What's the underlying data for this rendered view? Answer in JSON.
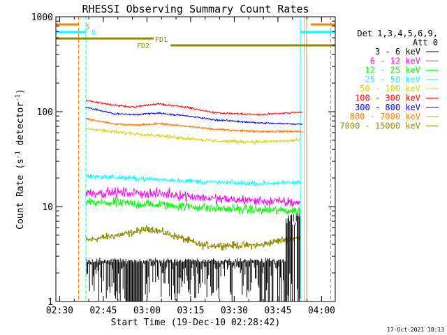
{
  "chart_data": {
    "type": "line",
    "title": "RHESSI Observing Summary Count Rates",
    "xlabel": "Start Time (19-Dec-10 02:28:42)",
    "ylabel": "Count Rate (s^-1 detector^-1)",
    "ylabel_parts": [
      "Count Rate (s",
      "-1",
      " detector",
      "-1",
      ")"
    ],
    "yscale": "log",
    "ylim": [
      1,
      1000
    ],
    "xlim_minutes": [
      0,
      96
    ],
    "x_tick_labels": [
      "02:30",
      "02:45",
      "03:00",
      "03:15",
      "03:30",
      "03:45",
      "04:00"
    ],
    "x_tick_minutes": [
      1.3,
      16.3,
      31.3,
      46.3,
      61.3,
      76.3,
      91.3
    ],
    "y_tick_labels": [
      "1",
      "10",
      "100",
      "1000"
    ],
    "y_tick_values": [
      1,
      10,
      100,
      1000
    ],
    "legend": {
      "header": [
        "Det 1,3,4,5,6,9,",
        "Att 0"
      ],
      "entries": [
        {
          "label": "3 - 6 keV",
          "color": "#000000"
        },
        {
          "label": "6 - 12 keV",
          "color": "#ff00ff"
        },
        {
          "label": "12 - 25 keV",
          "color": "#00ff00"
        },
        {
          "label": "25 - 50 keV",
          "color": "#00ffff"
        },
        {
          "label": "50 - 100 keV",
          "color": "#d4d400"
        },
        {
          "label": "100 - 300 keV",
          "color": "#ff0000"
        },
        {
          "label": "300 - 800 keV",
          "color": "#0000ff"
        },
        {
          "label": "800 - 7000 keV",
          "color": "#ff8000"
        },
        {
          "label": "7000 - 15000 keV",
          "color": "#8c8c00"
        }
      ]
    },
    "series": [
      {
        "name": "3 - 6 keV",
        "color": "#000000",
        "kind": "dropout",
        "t_start": 10.6,
        "t_end": 84,
        "base": 2.7
      },
      {
        "name": "6 - 12 keV",
        "color": "#ff00ff",
        "t_start": 10.3,
        "t_end": 84,
        "level": [
          [
            10.3,
            14
          ],
          [
            25,
            14
          ],
          [
            40,
            13.5
          ],
          [
            55,
            12
          ],
          [
            70,
            11.5
          ],
          [
            84,
            11
          ]
        ],
        "noise": 0.1
      },
      {
        "name": "12 - 25 keV",
        "color": "#00ff00",
        "t_start": 10.3,
        "t_end": 84,
        "level": [
          [
            10.3,
            11
          ],
          [
            25,
            10.8
          ],
          [
            40,
            10.3
          ],
          [
            55,
            9.6
          ],
          [
            70,
            9.2
          ],
          [
            84,
            9
          ]
        ],
        "noise": 0.1
      },
      {
        "name": "25 - 50 keV",
        "color": "#00ffff",
        "t_start": 10.3,
        "t_end": 84,
        "level": [
          [
            10.3,
            21
          ],
          [
            25,
            20
          ],
          [
            40,
            19
          ],
          [
            55,
            18
          ],
          [
            70,
            17.5
          ],
          [
            84,
            18
          ]
        ],
        "noise": 0.05
      },
      {
        "name": "50 - 100 keV",
        "color": "#d4d400",
        "t_start": 10.3,
        "t_end": 84,
        "level": [
          [
            10.3,
            67
          ],
          [
            20,
            61
          ],
          [
            30,
            58
          ],
          [
            40,
            54
          ],
          [
            55,
            49
          ],
          [
            70,
            48
          ],
          [
            84,
            50
          ]
        ],
        "noise": 0.035
      },
      {
        "name": "100 - 300 keV",
        "color": "#ff0000",
        "t_start": 10.3,
        "t_end": 85,
        "level": [
          [
            10.3,
            132
          ],
          [
            20,
            117
          ],
          [
            27,
            112
          ],
          [
            35,
            121
          ],
          [
            45,
            111
          ],
          [
            55,
            97
          ],
          [
            70,
            93
          ],
          [
            84,
            99
          ]
        ],
        "noise": 0.018
      },
      {
        "name": "300 - 800 keV",
        "color": "#0000ff",
        "t_start": 10.3,
        "t_end": 85,
        "level": [
          [
            10.3,
            111
          ],
          [
            20,
            95
          ],
          [
            27,
            93
          ],
          [
            35,
            97
          ],
          [
            45,
            90
          ],
          [
            55,
            82
          ],
          [
            70,
            76
          ],
          [
            84,
            74
          ]
        ],
        "noise": 0.018
      },
      {
        "name": "800 - 7000 keV",
        "color": "#ff8000",
        "kind": "step",
        "t_start": 10.3,
        "t_end": 85,
        "level": [
          [
            10.3,
            84
          ],
          [
            20,
            74
          ],
          [
            27,
            72
          ],
          [
            35,
            75
          ],
          [
            45,
            70
          ],
          [
            55,
            65
          ],
          [
            70,
            62
          ],
          [
            84,
            62
          ]
        ],
        "noise": 0.02
      },
      {
        "name": "7000 - 15000 keV",
        "color": "#8c8c00",
        "kind": "step",
        "t_start": 10.3,
        "t_end": 84,
        "level": [
          [
            10.3,
            4.4
          ],
          [
            25,
            5.2
          ],
          [
            32,
            5.9
          ],
          [
            38,
            5.2
          ],
          [
            50,
            3.9
          ],
          [
            70,
            3.9
          ],
          [
            80,
            4.6
          ],
          [
            84,
            4.6
          ]
        ],
        "noise": 0.07
      }
    ],
    "flag_bars": [
      {
        "label": "S",
        "color": "#ff8000",
        "y": 830,
        "segments": [
          [
            0,
            7.8
          ],
          [
            87.6,
            96
          ]
        ]
      },
      {
        "label": "N",
        "color": "#00ffff",
        "y": 690,
        "segments": [
          [
            0,
            10.3
          ],
          [
            84,
            96
          ]
        ]
      },
      {
        "label": "FD1",
        "color": "#8c8c00",
        "y": 590,
        "segments": [
          [
            0,
            33.6
          ]
        ]
      },
      {
        "label": "FD2",
        "color": "#8c8c00",
        "y": 500,
        "segments": [
          [
            39.4,
            96
          ]
        ]
      }
    ],
    "vertical_lines": [
      {
        "color": "#ff8000",
        "style": "dashed",
        "minute": 7.8
      },
      {
        "color": "#00ffff",
        "style": "dashed",
        "minute": 10.3
      },
      {
        "color": "#00ffff",
        "style": "solid",
        "minute": 84
      },
      {
        "color": "#ff8000",
        "style": "solid",
        "minute": 86.2
      },
      {
        "color": "#00ffff",
        "style": "solid",
        "minute": 85.3
      },
      {
        "color": "#00ffff",
        "style": "dashed",
        "minute": 94.4
      },
      {
        "color": "#ff8000",
        "style": "dashed",
        "minute": 94.4
      }
    ]
  },
  "footer_timestamp": "17-Oct-2021 18:13"
}
